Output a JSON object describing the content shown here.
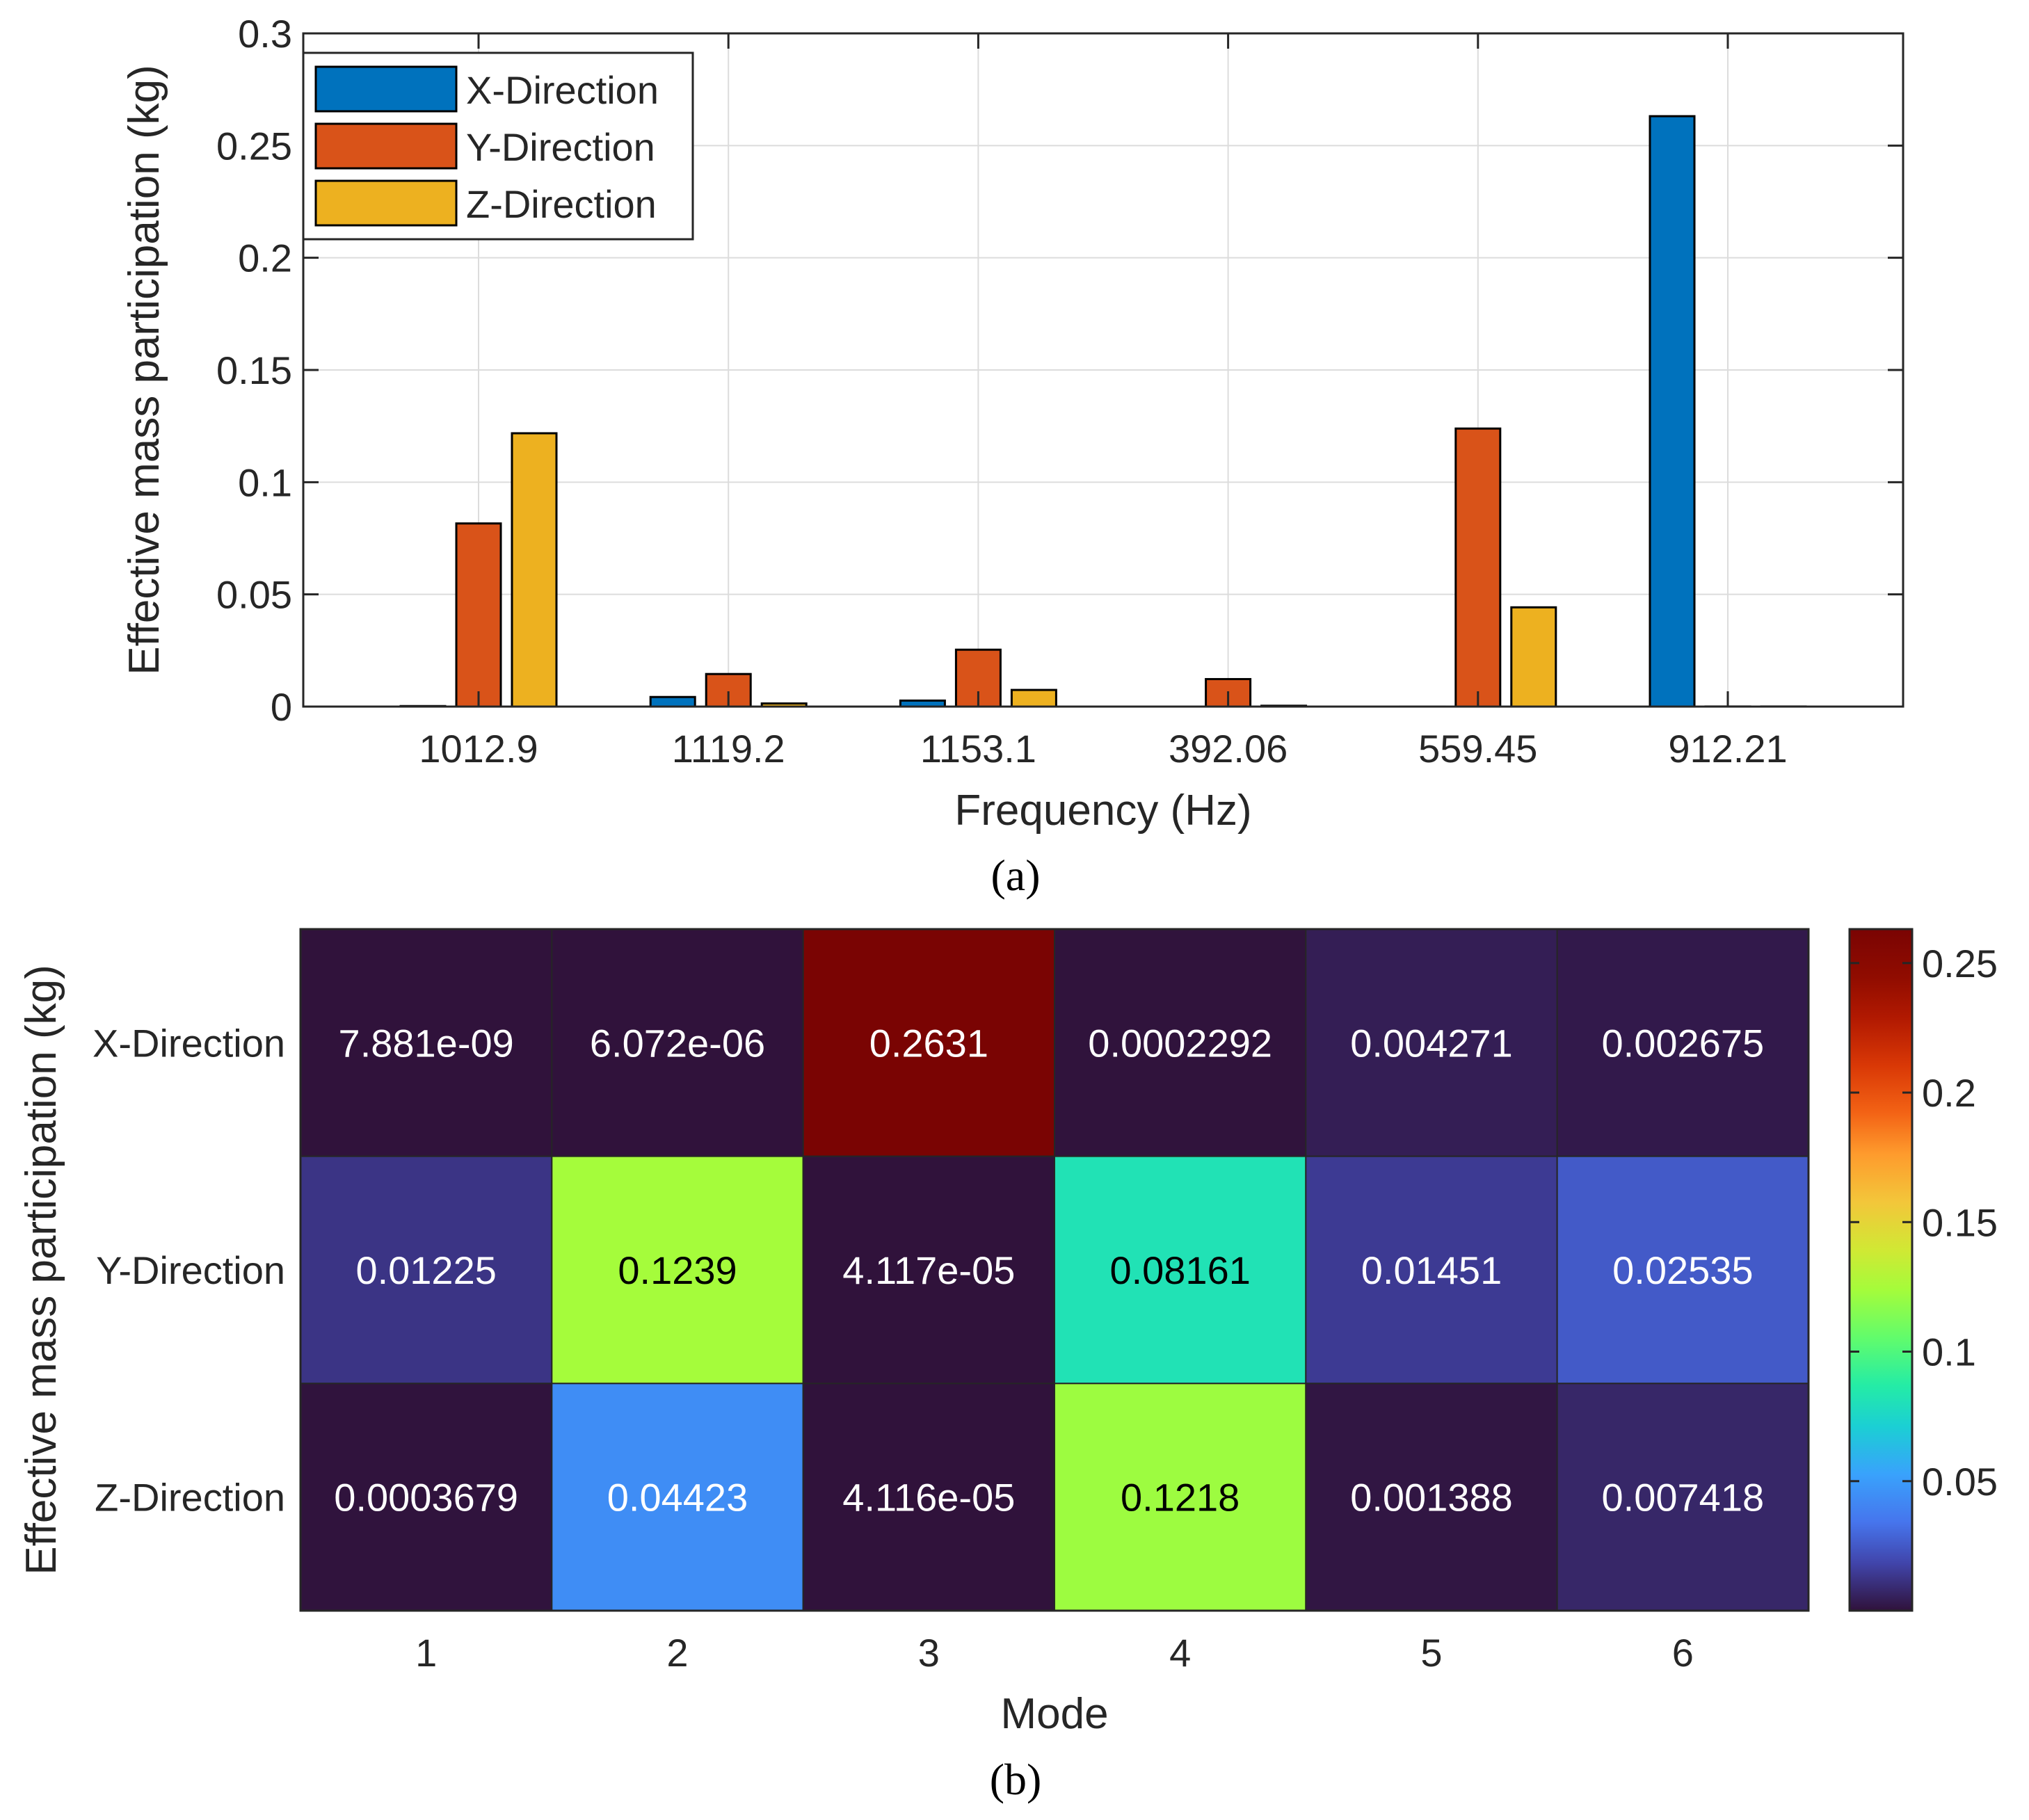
{
  "colors": {
    "x_direction": "#0072BD",
    "y_direction": "#D95319",
    "z_direction": "#EDB120",
    "grid": "#DCDCDC",
    "axis": "#262626"
  },
  "chart_data": [
    {
      "type": "bar",
      "panel_label": "(a)",
      "xlabel": "Frequency (Hz)",
      "ylabel": "Effective mass participation (kg)",
      "categories": [
        "1012.9",
        "1119.2",
        "1153.1",
        "392.06",
        "559.45",
        "912.21"
      ],
      "ylim": [
        0,
        0.3
      ],
      "yticks": [
        0,
        0.05,
        0.1,
        0.15,
        0.2,
        0.25,
        0.3
      ],
      "ytick_labels": [
        "0",
        "0.05",
        "0.1",
        "0.15",
        "0.2",
        "0.25",
        "0.3"
      ],
      "grid": true,
      "legend_position": "top-left",
      "series": [
        {
          "name": "X-Direction",
          "color_key": "x_direction",
          "values": [
            0.0002292,
            0.004271,
            0.002675,
            7.881e-09,
            6.072e-06,
            0.2631
          ]
        },
        {
          "name": "Y-Direction",
          "color_key": "y_direction",
          "values": [
            0.08161,
            0.01451,
            0.02535,
            0.01225,
            0.1239,
            4.117e-05
          ]
        },
        {
          "name": "Z-Direction",
          "color_key": "z_direction",
          "values": [
            0.1218,
            0.001388,
            0.007418,
            0.0003679,
            0.04423,
            4.116e-05
          ]
        }
      ]
    },
    {
      "type": "heatmap",
      "panel_label": "(b)",
      "xlabel": "Mode",
      "ylabel": "Effective mass participation (kg)",
      "x_categories": [
        "1",
        "2",
        "3",
        "4",
        "5",
        "6"
      ],
      "y_categories": [
        "X-Direction",
        "Y-Direction",
        "Z-Direction"
      ],
      "values": [
        [
          7.881e-09,
          6.072e-06,
          0.2631,
          0.0002292,
          0.004271,
          0.002675
        ],
        [
          0.01225,
          0.1239,
          4.117e-05,
          0.08161,
          0.01451,
          0.02535
        ],
        [
          0.0003679,
          0.04423,
          4.116e-05,
          0.1218,
          0.001388,
          0.007418
        ]
      ],
      "cell_labels": [
        [
          "7.881e-09",
          "6.072e-06",
          "0.2631",
          "0.0002292",
          "0.004271",
          "0.002675"
        ],
        [
          "0.01225",
          "0.1239",
          "4.117e-05",
          "0.08161",
          "0.01451",
          "0.02535"
        ],
        [
          "0.0003679",
          "0.04423",
          "4.116e-05",
          "0.1218",
          "0.001388",
          "0.007418"
        ]
      ],
      "colormap": "turbo",
      "clim": [
        7.881e-09,
        0.2631
      ],
      "colorbar_ticks": [
        0.05,
        0.1,
        0.15,
        0.2,
        0.25
      ],
      "colorbar_tick_labels": [
        "0.05",
        "0.1",
        "0.15",
        "0.2",
        "0.25"
      ]
    }
  ]
}
